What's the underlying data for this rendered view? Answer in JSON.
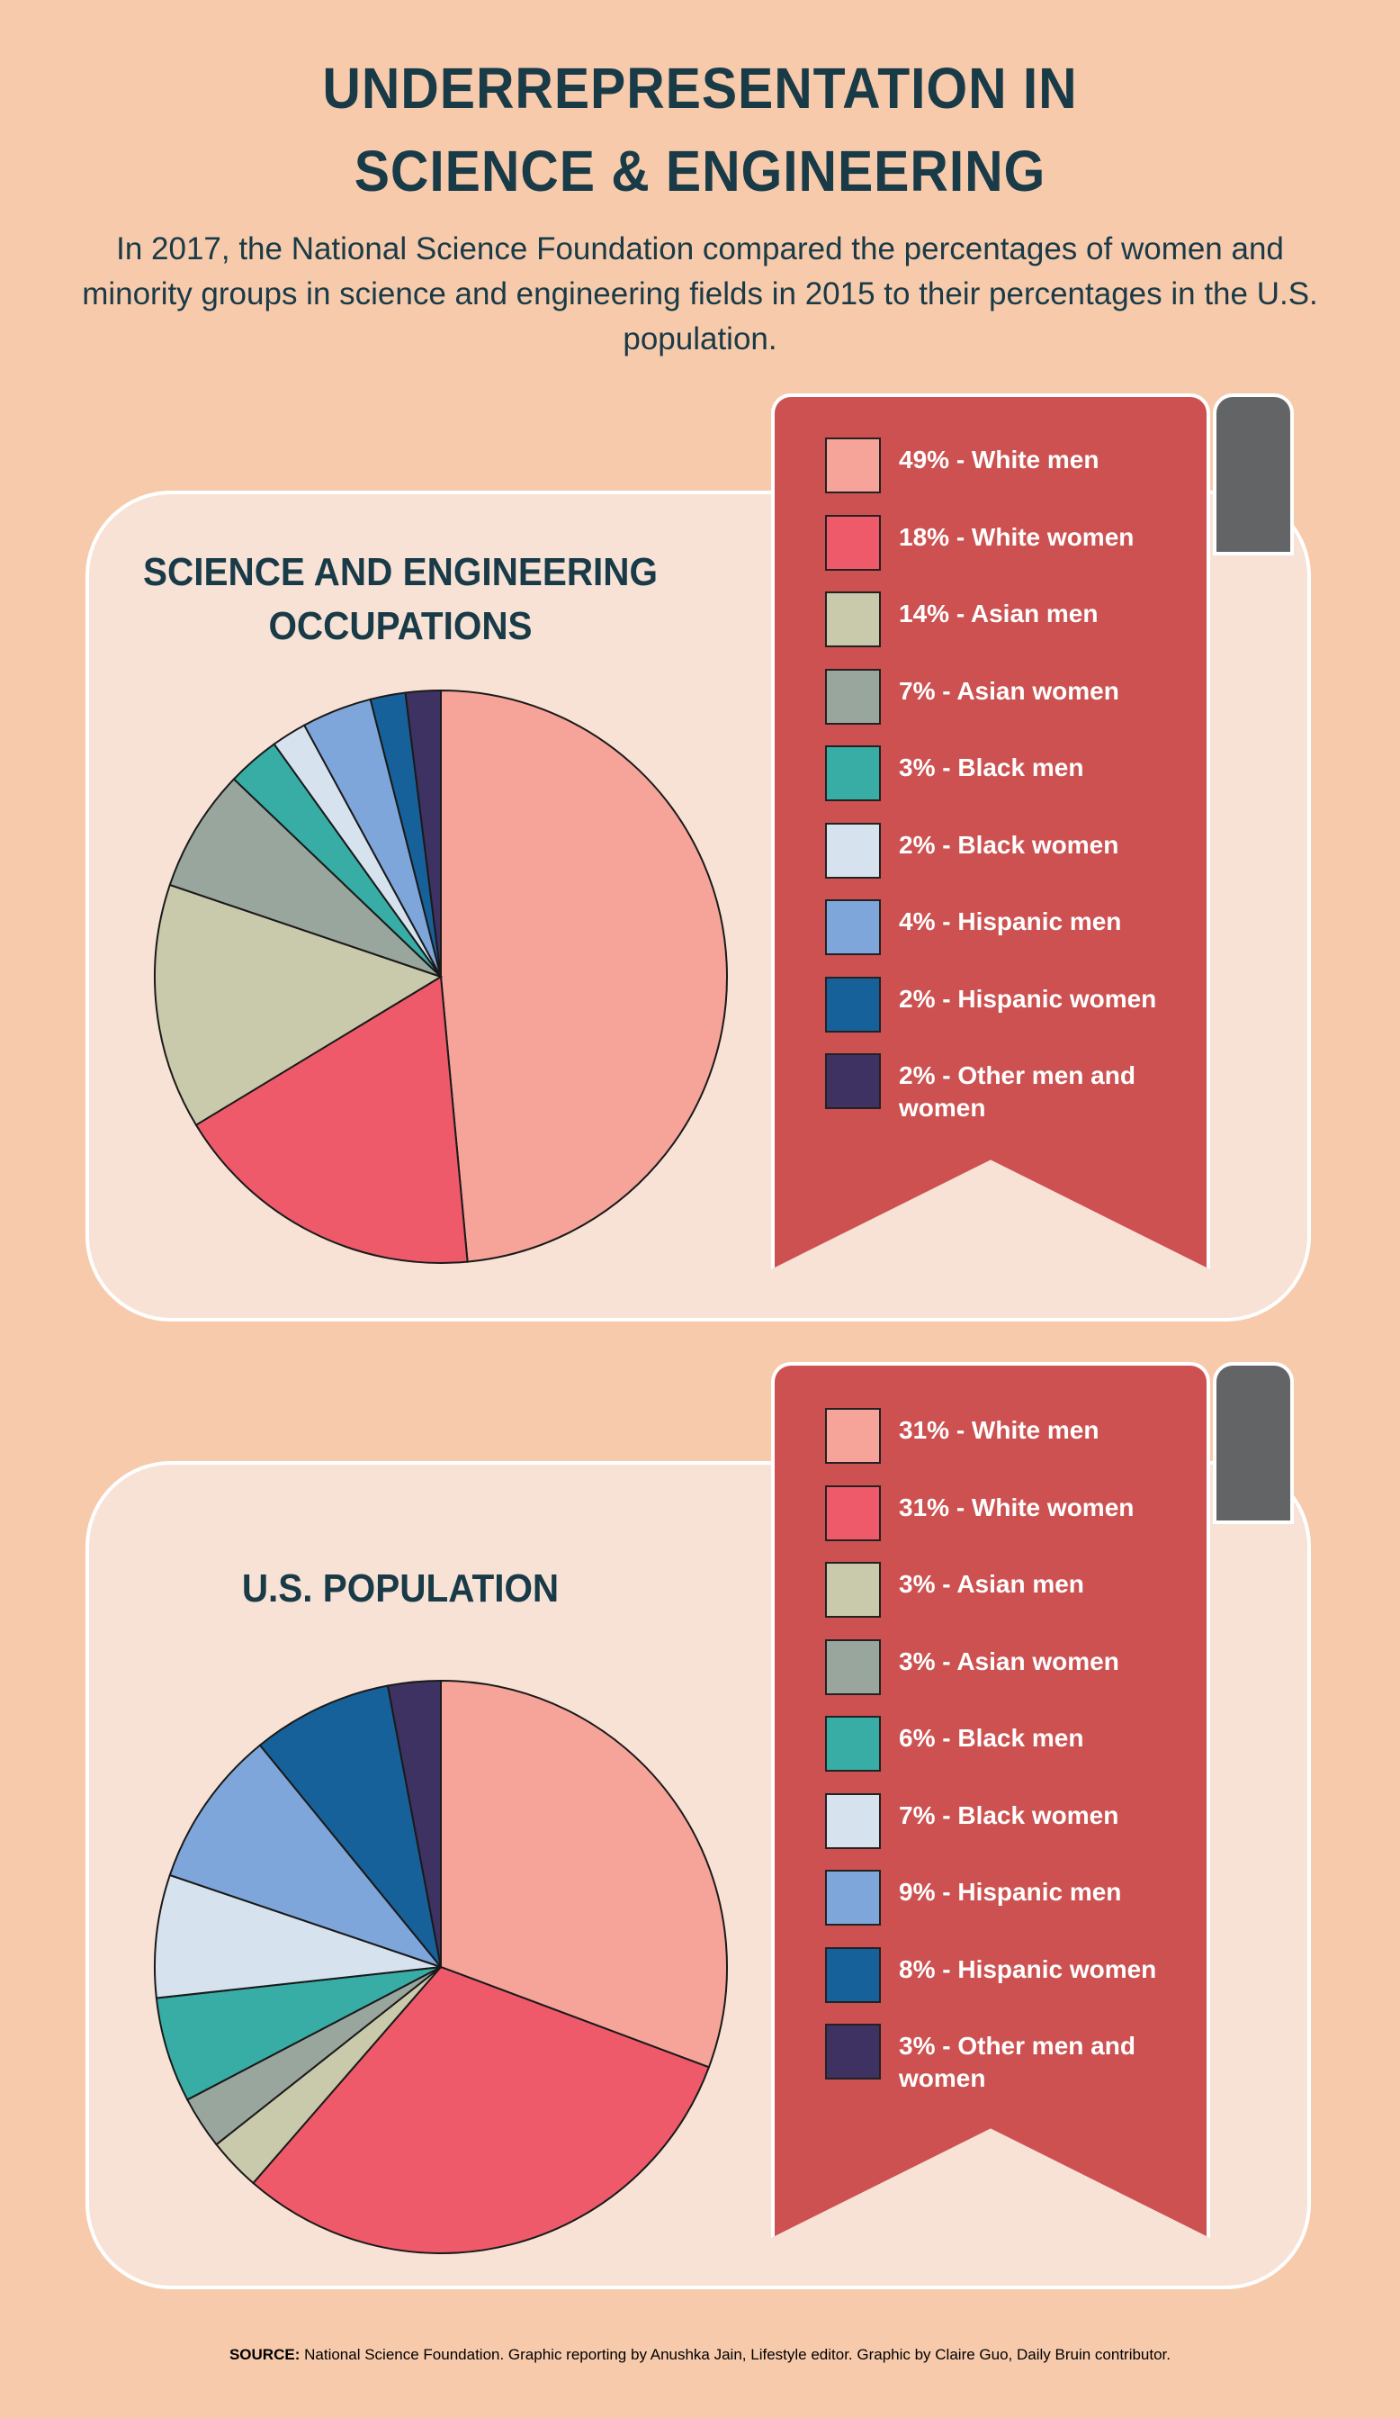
{
  "header": {
    "title_line1": "UNDERREPRESENTATION IN",
    "title_line2": "SCIENCE & ENGINEERING",
    "subtitle": "In 2017, the National Science Foundation compared the percentages of women and minority groups in science and engineering fields in 2015 to their percentages in the U.S. population."
  },
  "colors": {
    "White men": "#f6a39a",
    "White women": "#ef5a6b",
    "Asian men": "#c9c9ab",
    "Asian women": "#99a69d",
    "Black men": "#37ada6",
    "Black women": "#d6e2ee",
    "Hispanic men": "#7ea6da",
    "Hispanic women": "#17619a",
    "Other men and women": "#3d3262"
  },
  "chart_data": [
    {
      "type": "pie",
      "title": "SCIENCE AND ENGINEERING OCCUPATIONS",
      "categories": [
        "White men",
        "White women",
        "Asian men",
        "Asian women",
        "Black men",
        "Black women",
        "Hispanic men",
        "Hispanic women",
        "Other men and women"
      ],
      "values": [
        49,
        18,
        14,
        7,
        3,
        2,
        4,
        2,
        2
      ],
      "legend": [
        "49% - White men",
        "18% - White women",
        "14% - Asian men",
        "7% - Asian women",
        "3% - Black men",
        "2% - Black women",
        "4% - Hispanic men",
        "2% - Hispanic women",
        "2% - Other men and women"
      ]
    },
    {
      "type": "pie",
      "title": "U.S. POPULATION",
      "categories": [
        "White men",
        "White women",
        "Asian men",
        "Asian women",
        "Black men",
        "Black women",
        "Hispanic men",
        "Hispanic women",
        "Other men and women"
      ],
      "values": [
        31,
        31,
        3,
        3,
        6,
        7,
        9,
        8,
        3
      ],
      "legend": [
        "31% - White men",
        "31% - White women",
        "3% - Asian men",
        "3% - Asian women",
        "6% - Black men",
        "7% - Black women",
        "9% - Hispanic men",
        "8% - Hispanic women",
        "3% - Other men and women"
      ]
    }
  ],
  "footer": {
    "source_label": "SOURCE:",
    "source_text": "National Science Foundation. Graphic reporting by Anushka Jain, Lifestyle editor. Graphic by Claire Guo, Daily Bruin contributor."
  }
}
